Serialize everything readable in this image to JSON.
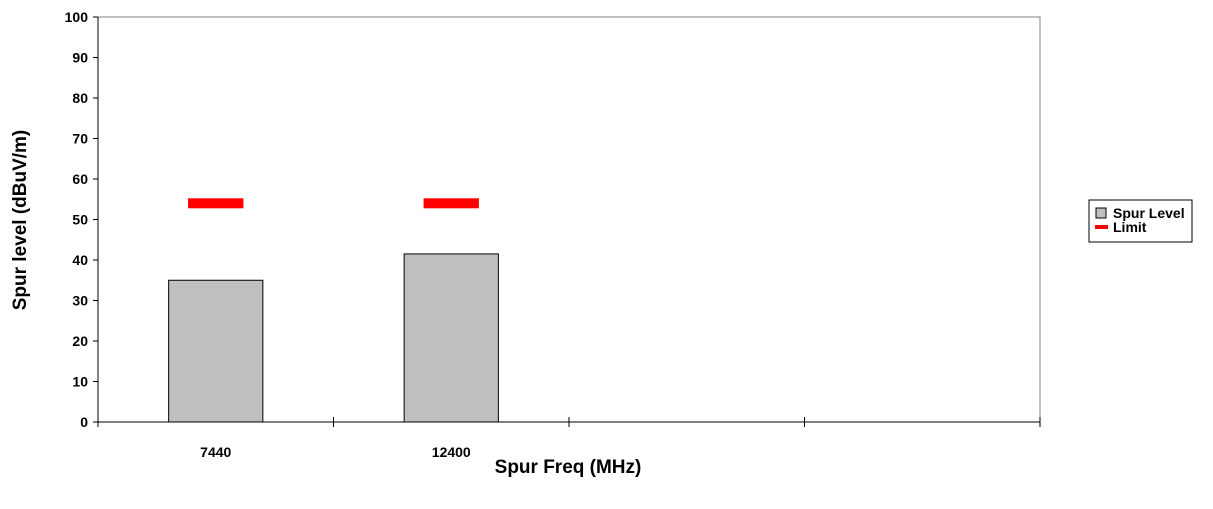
{
  "chart_data": {
    "type": "bar",
    "categories": [
      "7440",
      "12400",
      "",
      ""
    ],
    "series": [
      {
        "name": "Spur Level",
        "kind": "bar",
        "values": [
          35,
          41.5,
          null,
          null
        ],
        "color": "#c0c0c0"
      },
      {
        "name": "Limit",
        "kind": "marker",
        "values": [
          54,
          54,
          null,
          null
        ],
        "color": "#ff0000"
      }
    ],
    "title": "",
    "xlabel": "Spur Freq (MHz)",
    "ylabel": "Spur level (dBuV/m)",
    "ylim": [
      0,
      100
    ],
    "yticks": [
      0,
      10,
      20,
      30,
      40,
      50,
      60,
      70,
      80,
      90,
      100
    ],
    "grid": false,
    "legend": "right"
  }
}
